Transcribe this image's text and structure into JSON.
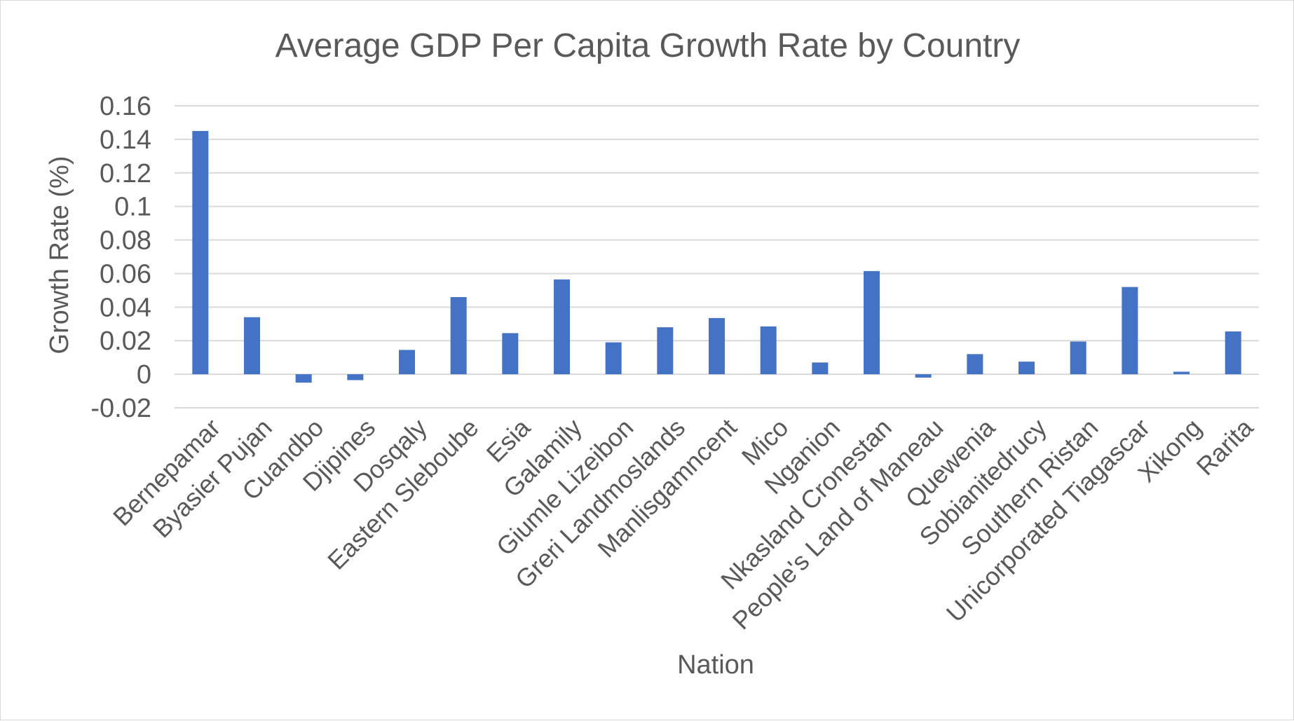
{
  "chart_data": {
    "type": "bar",
    "title": "Average GDP Per Capita Growth Rate by Country",
    "xlabel": "Nation",
    "ylabel": "Growth Rate (%)",
    "ylim": [
      -0.02,
      0.16
    ],
    "yticks": [
      "-0.02",
      "0",
      "0.02",
      "0.04",
      "0.06",
      "0.08",
      "0.1",
      "0.12",
      "0.14",
      "0.16"
    ],
    "ytick_values": [
      -0.02,
      0,
      0.02,
      0.04,
      0.06,
      0.08,
      0.1,
      0.12,
      0.14,
      0.16
    ],
    "grid": true,
    "legend": "none",
    "bar_color": "#4472c4",
    "categories": [
      "Bernepamar",
      "Byasier Pujan",
      "Cuandbo",
      "Djipines",
      "Dosqaly",
      "Eastern Sleboube",
      "Esia",
      "Galamily",
      "Giumle Lizeibon",
      "Greri Landmoslands",
      "Manlisgamncent",
      "Mico",
      "Nganion",
      "Nkasland Cronestan",
      "People's Land of Maneau",
      "Quewenia",
      "Sobianitedrucy",
      "Southern Ristan",
      "Unicorporated Tiagascar",
      "Xikong",
      "Rarita"
    ],
    "values": [
      0.145,
      0.034,
      -0.005,
      -0.0035,
      0.0145,
      0.046,
      0.0245,
      0.0565,
      0.019,
      0.028,
      0.0335,
      0.0285,
      0.007,
      0.0615,
      -0.002,
      0.012,
      0.0075,
      0.0195,
      0.052,
      0.0015,
      0.0255
    ]
  }
}
